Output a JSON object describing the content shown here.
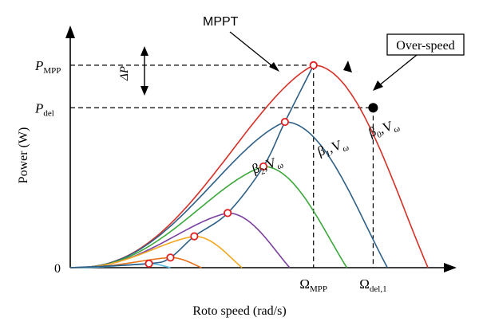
{
  "chart_data": {
    "type": "line",
    "xlabel": "Roto speed (rad/s)",
    "ylabel": "Power (W)",
    "y_origin_label": "0",
    "y_markers": [
      {
        "label": "P",
        "sub": "MPP",
        "value": 1.0
      },
      {
        "label": "P",
        "sub": "del",
        "value": 0.79
      }
    ],
    "x_markers": [
      {
        "label": "Ω",
        "sub": "MPP",
        "value": 5.1
      },
      {
        "label": "Ω",
        "sub": "del,1",
        "value": 6.35
      }
    ],
    "delta_label": "ΔP",
    "mppt_label": "MPPT",
    "overspeed_label": "Over-speed",
    "series": [
      {
        "key": "beta0",
        "color": "#d73027",
        "peak_x": 5.1,
        "peak_y": 1.0,
        "end_x": 7.5,
        "label_greek": "β",
        "label_sub": "0",
        "label_v": "V",
        "label_vsub": "ω"
      },
      {
        "key": "beta1",
        "color": "#2e5f86",
        "peak_x": 4.5,
        "peak_y": 0.72,
        "end_x": 6.65,
        "label_greek": "β",
        "label_sub": "1",
        "label_v": "V",
        "label_vsub": "ω"
      },
      {
        "key": "beta2",
        "color": "#3aa83a",
        "peak_x": 4.05,
        "peak_y": 0.5,
        "end_x": 5.8,
        "label_greek": "β",
        "label_sub": "2",
        "label_v": "V",
        "label_vsub": "ω"
      },
      {
        "key": "c3",
        "color": "#7b3fa0",
        "peak_x": 3.3,
        "peak_y": 0.27,
        "end_x": 4.6,
        "label_greek": "",
        "label_sub": "",
        "label_v": "",
        "label_vsub": ""
      },
      {
        "key": "c4",
        "color": "#f2a81d",
        "peak_x": 2.6,
        "peak_y": 0.155,
        "end_x": 3.6,
        "label_greek": "",
        "label_sub": "",
        "label_v": "",
        "label_vsub": ""
      },
      {
        "key": "c5",
        "color": "#e8731c",
        "peak_x": 2.1,
        "peak_y": 0.05,
        "end_x": 2.75,
        "label_greek": "",
        "label_sub": "",
        "label_v": "",
        "label_vsub": ""
      },
      {
        "key": "c6",
        "color": "#5bbbe5",
        "peak_x": 1.65,
        "peak_y": 0.02,
        "end_x": 2.1,
        "label_greek": "",
        "label_sub": "",
        "label_v": "",
        "label_vsub": ""
      }
    ],
    "mpp_points": [
      {
        "x": 1.65,
        "y": 0.02
      },
      {
        "x": 2.1,
        "y": 0.05
      },
      {
        "x": 2.6,
        "y": 0.155
      },
      {
        "x": 3.3,
        "y": 0.27
      },
      {
        "x": 4.05,
        "y": 0.5
      },
      {
        "x": 4.5,
        "y": 0.72
      },
      {
        "x": 5.1,
        "y": 1.0
      }
    ],
    "overspeed_point": {
      "x": 6.35,
      "y": 0.79
    },
    "xlim": [
      0,
      8.0
    ],
    "ylim": [
      0,
      1.22
    ],
    "grid": false
  }
}
